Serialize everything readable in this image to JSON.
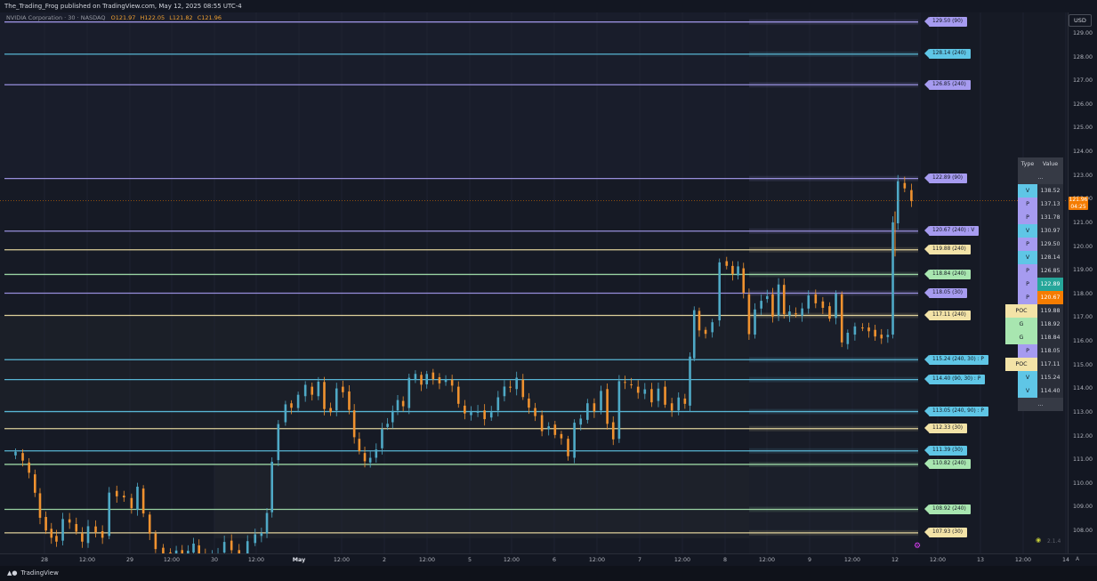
{
  "header": {
    "publisher_line": "The_Trading_Frog published on TradingView.com, May 12, 2025 08:55 UTC-4",
    "symbol": "NVIDIA Corporation · 30 · NASDAQ",
    "ohlc": {
      "o": "O121.97",
      "h": "H122.05",
      "l": "L121.82",
      "c": "C121.96"
    }
  },
  "currency_button": "USD",
  "last_price": {
    "value": "121.96",
    "countdown": "04:25"
  },
  "footer": {
    "logo_text": "TradingView"
  },
  "indicator_badge": "2.1.4",
  "axis_corner_label": "A",
  "colors": {
    "background": "#161a25",
    "up": "#4fa9c6",
    "down": "#f0922f",
    "level_purple": "#a69bf0",
    "level_blue": "#5fc6e6",
    "level_yellow": "#f3e3a7",
    "level_green": "#a8e6b0",
    "price_tag": "#f57c00"
  },
  "chart_data": {
    "type": "candlestick",
    "title": "NVIDIA Corporation · 30 · NASDAQ",
    "ylim": [
      107.7,
      129.5
    ],
    "y_ticks": [
      "129.00",
      "128.00",
      "127.00",
      "126.00",
      "125.00",
      "124.00",
      "123.00",
      "122.00",
      "121.00",
      "120.00",
      "119.00",
      "118.00",
      "117.00",
      "116.00",
      "115.00",
      "114.00",
      "113.00",
      "112.00",
      "111.00",
      "110.00",
      "109.00",
      "108.00"
    ],
    "x_ticks": [
      "28",
      "12:00",
      "29",
      "12:00",
      "30",
      "12:00",
      "May",
      "12:00",
      "2",
      "12:00",
      "5",
      "12:00",
      "6",
      "12:00",
      "7",
      "12:00",
      "8",
      "12:00",
      "9",
      "12:00",
      "12",
      "12:00",
      "13",
      "12:00",
      "14"
    ],
    "x_tick_bold": "May",
    "price_path": [
      [
        0.5,
        111.2
      ],
      [
        1.5,
        111.3
      ],
      [
        2.2,
        110.9
      ],
      [
        3.0,
        110.4
      ],
      [
        3.6,
        109.6
      ],
      [
        4.2,
        108.6
      ],
      [
        5.0,
        108.1
      ],
      [
        5.5,
        107.8
      ],
      [
        6.2,
        107.6
      ],
      [
        7.0,
        108.5
      ],
      [
        7.8,
        108.3
      ],
      [
        8.6,
        107.9
      ],
      [
        9.2,
        107.5
      ],
      [
        10.0,
        108.2
      ],
      [
        11.0,
        108.0
      ],
      [
        11.6,
        107.8
      ],
      [
        12.6,
        109.7
      ],
      [
        13.4,
        109.5
      ],
      [
        14.3,
        109.4
      ],
      [
        15.2,
        108.9
      ],
      [
        15.7,
        109.8
      ],
      [
        16.6,
        108.7
      ],
      [
        17.2,
        107.9
      ],
      [
        18.0,
        107.3
      ],
      [
        19.0,
        107.1
      ],
      [
        19.7,
        107.0
      ],
      [
        20.4,
        107.2
      ],
      [
        21.1,
        107.0
      ],
      [
        21.8,
        107.1
      ],
      [
        22.4,
        107.4
      ],
      [
        23.1,
        107.0
      ],
      [
        23.9,
        106.8
      ],
      [
        24.7,
        107.0
      ],
      [
        25.3,
        107.1
      ],
      [
        26.2,
        107.6
      ],
      [
        27.0,
        107.2
      ],
      [
        28.0,
        107.0
      ],
      [
        29.0,
        107.5
      ],
      [
        29.8,
        107.8
      ],
      [
        30.5,
        107.9
      ],
      [
        31.1,
        108.8
      ],
      [
        31.7,
        111.0
      ],
      [
        32.6,
        112.6
      ],
      [
        33.4,
        113.4
      ],
      [
        34.0,
        113.2
      ],
      [
        35.0,
        113.7
      ],
      [
        35.7,
        114.1
      ],
      [
        36.6,
        113.7
      ],
      [
        37.2,
        114.3
      ],
      [
        38.0,
        113.2
      ],
      [
        38.7,
        113.1
      ],
      [
        39.4,
        114.1
      ],
      [
        40.2,
        113.9
      ],
      [
        40.9,
        113.1
      ],
      [
        41.4,
        111.9
      ],
      [
        42.1,
        111.3
      ],
      [
        42.7,
        110.9
      ],
      [
        43.4,
        111.1
      ],
      [
        44.1,
        111.5
      ],
      [
        44.8,
        112.4
      ],
      [
        45.4,
        112.6
      ],
      [
        46.0,
        113.1
      ],
      [
        46.6,
        113.5
      ],
      [
        47.3,
        113.2
      ],
      [
        48.0,
        114.4
      ],
      [
        48.8,
        114.6
      ],
      [
        49.4,
        114.2
      ],
      [
        50.1,
        114.7
      ],
      [
        50.9,
        114.5
      ],
      [
        51.6,
        114.3
      ],
      [
        52.4,
        114.4
      ],
      [
        53.1,
        114.1
      ],
      [
        53.9,
        113.3
      ],
      [
        54.6,
        112.9
      ],
      [
        55.4,
        113.0
      ],
      [
        56.2,
        113.1
      ],
      [
        57.0,
        112.8
      ],
      [
        57.8,
        113.1
      ],
      [
        58.6,
        113.7
      ],
      [
        59.3,
        114.1
      ],
      [
        60.0,
        114.0
      ],
      [
        60.8,
        114.4
      ],
      [
        61.5,
        113.6
      ],
      [
        62.2,
        113.2
      ],
      [
        63.0,
        112.9
      ],
      [
        63.8,
        112.3
      ],
      [
        64.6,
        112.5
      ],
      [
        65.3,
        112.1
      ],
      [
        66.1,
        111.9
      ],
      [
        66.9,
        111.1
      ],
      [
        67.6,
        112.5
      ],
      [
        68.4,
        112.7
      ],
      [
        69.2,
        113.4
      ],
      [
        70.0,
        113.1
      ],
      [
        70.8,
        114.0
      ],
      [
        71.5,
        112.6
      ],
      [
        72.2,
        111.9
      ],
      [
        72.9,
        114.3
      ],
      [
        73.6,
        114.2
      ],
      [
        74.4,
        114.1
      ],
      [
        75.2,
        113.8
      ],
      [
        76.0,
        114.0
      ],
      [
        76.8,
        113.5
      ],
      [
        77.6,
        114.1
      ],
      [
        78.4,
        113.4
      ],
      [
        79.2,
        113.1
      ],
      [
        80.0,
        113.6
      ],
      [
        80.7,
        113.3
      ],
      [
        81.2,
        115.3
      ],
      [
        81.7,
        117.3
      ],
      [
        82.4,
        116.5
      ],
      [
        83.2,
        116.4
      ],
      [
        84.0,
        116.9
      ],
      [
        84.9,
        119.4
      ],
      [
        85.7,
        119.2
      ],
      [
        86.3,
        118.8
      ],
      [
        87.0,
        119.1
      ],
      [
        87.6,
        118.0
      ],
      [
        88.3,
        116.3
      ],
      [
        89.0,
        117.4
      ],
      [
        89.8,
        117.8
      ],
      [
        90.4,
        118.0
      ],
      [
        91.1,
        117.1
      ],
      [
        91.8,
        118.4
      ],
      [
        92.4,
        117.1
      ],
      [
        93.1,
        117.2
      ],
      [
        93.9,
        117.1
      ],
      [
        94.6,
        117.4
      ],
      [
        95.4,
        118.0
      ],
      [
        96.3,
        117.7
      ],
      [
        97.1,
        117.5
      ],
      [
        97.9,
        117.0
      ],
      [
        98.6,
        118.0
      ],
      [
        99.3,
        115.9
      ],
      [
        100.0,
        116.3
      ],
      [
        101.0,
        116.6
      ],
      [
        101.8,
        116.6
      ],
      [
        102.5,
        116.5
      ],
      [
        103.3,
        116.3
      ],
      [
        104.0,
        116.2
      ],
      [
        104.8,
        116.3
      ],
      [
        105.2,
        121.0
      ],
      [
        106.0,
        122.7
      ],
      [
        106.8,
        122.4
      ],
      [
        107.6,
        121.9
      ]
    ],
    "bar_spacing": 0.7,
    "levels": [
      {
        "label": "129.50 (90)",
        "price": 129.5,
        "type": "P",
        "color": "#a69bf0"
      },
      {
        "label": "128.14 (240)",
        "price": 128.14,
        "type": "V",
        "color": "#5fc6e6"
      },
      {
        "label": "126.85 (240)",
        "price": 126.85,
        "type": "P",
        "color": "#a69bf0"
      },
      {
        "label": "122.89 (90)",
        "price": 122.89,
        "type": "P",
        "color": "#a69bf0"
      },
      {
        "label": "120.67 (240) : V",
        "price": 120.67,
        "type": "P",
        "color": "#a69bf0"
      },
      {
        "label": "119.88 (240)",
        "price": 119.88,
        "type": "POC",
        "color": "#f3e3a7"
      },
      {
        "label": "118.84 (240)",
        "price": 118.84,
        "type": "G",
        "color": "#a8e6b0"
      },
      {
        "label": "118.05 (30)",
        "price": 118.05,
        "type": "P",
        "color": "#a69bf0"
      },
      {
        "label": "117.11 (240)",
        "price": 117.11,
        "type": "POC",
        "color": "#f3e3a7"
      },
      {
        "label": "115.24 (240, 30) : P",
        "price": 115.24,
        "type": "V",
        "color": "#5fc6e6"
      },
      {
        "label": "114.40 (90, 30) : P",
        "price": 114.4,
        "type": "V",
        "color": "#5fc6e6"
      },
      {
        "label": "113.05 (240, 90) : P",
        "price": 113.05,
        "type": "V",
        "color": "#5fc6e6"
      },
      {
        "label": "112.33 (30)",
        "price": 112.33,
        "type": "POC",
        "color": "#f3e3a7"
      },
      {
        "label": "111.39 (30)",
        "price": 111.39,
        "type": "V",
        "color": "#5fc6e6"
      },
      {
        "label": "110.82 (240)",
        "price": 110.82,
        "type": "G",
        "color": "#a8e6b0"
      },
      {
        "label": "108.92 (240)",
        "price": 108.92,
        "type": "G",
        "color": "#a8e6b0"
      },
      {
        "label": "107.93 (30)",
        "price": 107.93,
        "type": "POC",
        "color": "#f3e3a7"
      }
    ],
    "table": {
      "headers": [
        "Type",
        "Value"
      ],
      "rows": [
        {
          "type": "...",
          "value": ""
        },
        {
          "type": "V",
          "value": "138.52"
        },
        {
          "type": "P",
          "value": "137.13"
        },
        {
          "type": "P",
          "value": "131.78"
        },
        {
          "type": "V",
          "value": "130.97"
        },
        {
          "type": "P",
          "value": "129.50"
        },
        {
          "type": "V",
          "value": "128.14"
        },
        {
          "type": "P",
          "value": "126.85"
        },
        {
          "type": "P",
          "value": "122.89",
          "highlight": "#26a69a"
        },
        {
          "type": "P",
          "value": "120.67",
          "highlight": "#f57c00"
        },
        {
          "type": "POC",
          "value": "119.88"
        },
        {
          "type": "G",
          "value": "118.92"
        },
        {
          "type": "G",
          "value": "118.84"
        },
        {
          "type": "P",
          "value": "118.05"
        },
        {
          "type": "POC",
          "value": "117.11"
        },
        {
          "type": "V",
          "value": "115.24"
        },
        {
          "type": "V",
          "value": "114.40"
        },
        {
          "type": "...",
          "value": ""
        }
      ]
    }
  }
}
